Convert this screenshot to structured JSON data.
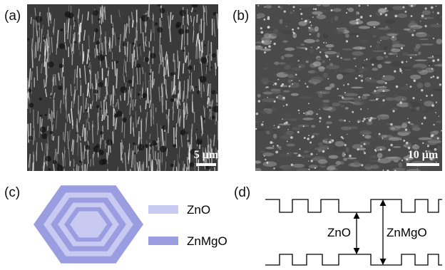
{
  "panels": [
    {
      "label": "(a)",
      "scale_bar": "5 μm"
    },
    {
      "label": "(b)",
      "scale_bar": "10 μm"
    },
    {
      "label": "(c)",
      "legend": [
        "ZnO",
        "ZnMgO"
      ]
    },
    {
      "label": "(d)",
      "annotations": [
        "ZnO",
        "ZnMgO"
      ]
    }
  ]
}
